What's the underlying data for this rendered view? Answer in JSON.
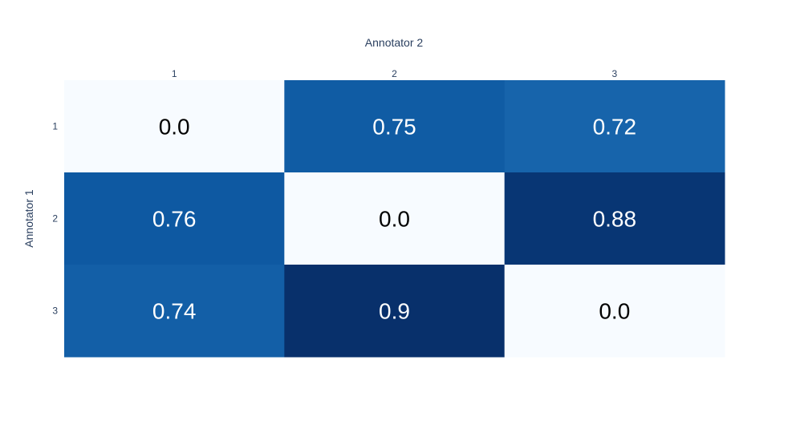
{
  "chart_data": {
    "type": "heatmap",
    "title": "",
    "xlabel": "Annotator 2",
    "ylabel": "Annotator 1",
    "x_categories": [
      "1",
      "2",
      "3"
    ],
    "y_categories": [
      "1",
      "2",
      "3"
    ],
    "values": [
      [
        0.0,
        0.75,
        0.72
      ],
      [
        0.76,
        0.0,
        0.88
      ],
      [
        0.74,
        0.9,
        0.0
      ]
    ],
    "cell_labels": [
      [
        "0.0",
        "0.75",
        "0.72"
      ],
      [
        "0.76",
        "0.0",
        "0.88"
      ],
      [
        "0.74",
        "0.9",
        "0.0"
      ]
    ],
    "colorscale": "Blues",
    "zmin": 0.0,
    "zmax": 0.9,
    "x_axis_side": "top",
    "colors": {
      "low": "#f7fbff",
      "high": "#08306b",
      "text_light": "#ffffff",
      "text_dark": "#000000",
      "axis_text": "#2a3f5f"
    }
  }
}
